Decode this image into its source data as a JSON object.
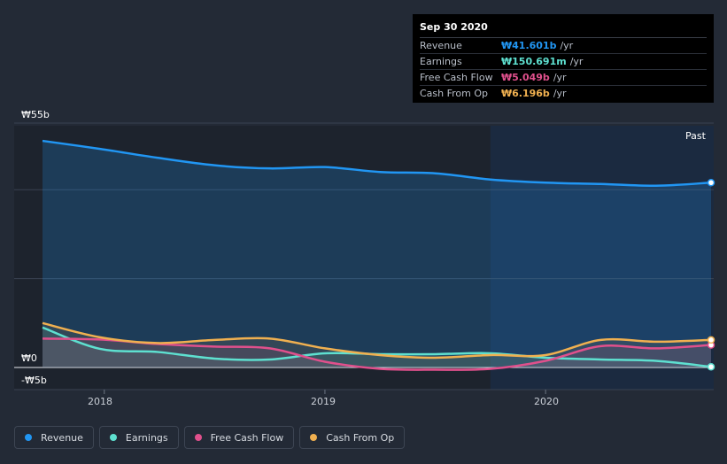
{
  "tooltip": {
    "date": "Sep 30 2020",
    "rows": [
      {
        "label": "Revenue",
        "value": "₩41.601b",
        "unit": "/yr",
        "color": "#2196f3"
      },
      {
        "label": "Earnings",
        "value": "₩150.691m",
        "unit": "/yr",
        "color": "#5ee0d0"
      },
      {
        "label": "Free Cash Flow",
        "value": "₩5.049b",
        "unit": "/yr",
        "color": "#e0508c"
      },
      {
        "label": "Cash From Op",
        "value": "₩6.196b",
        "unit": "/yr",
        "color": "#f0b050"
      }
    ]
  },
  "past_label": "Past",
  "legend": [
    {
      "label": "Revenue",
      "color": "#2196f3"
    },
    {
      "label": "Earnings",
      "color": "#5ee0d0"
    },
    {
      "label": "Free Cash Flow",
      "color": "#e0508c"
    },
    {
      "label": "Cash From Op",
      "color": "#f0b050"
    }
  ],
  "chart_data": {
    "type": "line",
    "title": "",
    "xlabel": "",
    "ylabel": "",
    "currency": "KRW",
    "unit": "billions",
    "ylim": [
      -5,
      55
    ],
    "y_tick_labels": [
      {
        "label": "₩55b",
        "value": 55
      },
      {
        "label": "₩0",
        "value": 0
      },
      {
        "label": "-₩5b",
        "value": -5
      }
    ],
    "xlim": [
      2017.72,
      2020.75
    ],
    "x_tick_labels": [
      {
        "label": "2018",
        "value": 2018
      },
      {
        "label": "2019",
        "value": 2019
      },
      {
        "label": "2020",
        "value": 2020
      }
    ],
    "past_region_start": 2019.75,
    "series": [
      {
        "name": "Revenue",
        "color": "#2196f3",
        "x": [
          2017.72,
          2017.98,
          2018.24,
          2018.5,
          2018.75,
          2019.0,
          2019.25,
          2019.5,
          2019.75,
          2020.0,
          2020.25,
          2020.5,
          2020.75
        ],
        "values": [
          51.0,
          49.2,
          47.2,
          45.5,
          44.8,
          45.1,
          44.0,
          43.7,
          42.3,
          41.6,
          41.3,
          40.9,
          41.6
        ]
      },
      {
        "name": "Earnings",
        "color": "#5ee0d0",
        "x": [
          2017.72,
          2017.98,
          2018.24,
          2018.5,
          2018.75,
          2019.0,
          2019.25,
          2019.5,
          2019.75,
          2020.0,
          2020.25,
          2020.5,
          2020.75
        ],
        "values": [
          9.0,
          4.2,
          3.5,
          2.0,
          1.8,
          3.2,
          3.0,
          3.0,
          3.2,
          2.2,
          1.8,
          1.5,
          0.15
        ]
      },
      {
        "name": "Free Cash Flow",
        "color": "#e0508c",
        "x": [
          2017.72,
          2017.98,
          2018.24,
          2018.5,
          2018.75,
          2019.0,
          2019.25,
          2019.5,
          2019.75,
          2020.0,
          2020.25,
          2020.5,
          2020.75
        ],
        "values": [
          6.5,
          6.3,
          5.3,
          4.7,
          4.3,
          1.3,
          -0.3,
          -0.5,
          -0.3,
          1.5,
          4.8,
          4.3,
          5.05
        ]
      },
      {
        "name": "Cash From Op",
        "color": "#f0b050",
        "x": [
          2017.72,
          2017.98,
          2018.24,
          2018.5,
          2018.75,
          2019.0,
          2019.25,
          2019.5,
          2019.75,
          2020.0,
          2020.25,
          2020.5,
          2020.75
        ],
        "values": [
          10.0,
          6.8,
          5.5,
          6.2,
          6.5,
          4.3,
          2.8,
          2.2,
          2.8,
          2.8,
          6.2,
          5.8,
          6.2
        ]
      }
    ]
  }
}
